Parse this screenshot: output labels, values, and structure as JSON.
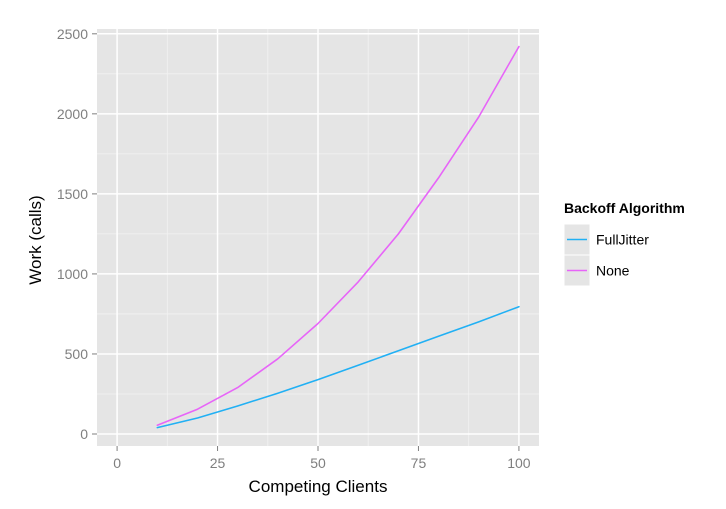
{
  "chart_data": {
    "type": "line",
    "xlabel": "Competing Clients",
    "ylabel": "Work (calls)",
    "xlim": [
      -5,
      105
    ],
    "ylim": [
      -75,
      2530
    ],
    "x_ticks": [
      0,
      25,
      50,
      75,
      100
    ],
    "y_ticks": [
      0,
      500,
      1000,
      1500,
      2000,
      2500
    ],
    "grid": true,
    "legend_position": "right",
    "legend_title": "Backoff Algorithm",
    "series": [
      {
        "name": "FullJitter",
        "color": "#21B0F4",
        "x": [
          10,
          20,
          30,
          40,
          50,
          60,
          70,
          80,
          90,
          100
        ],
        "y": [
          40,
          100,
          175,
          255,
          340,
          430,
          520,
          610,
          700,
          795
        ]
      },
      {
        "name": "None",
        "color": "#E765F8",
        "x": [
          10,
          20,
          30,
          40,
          50,
          60,
          70,
          80,
          90,
          100
        ],
        "y": [
          55,
          155,
          290,
          470,
          690,
          950,
          1250,
          1600,
          1980,
          2420
        ]
      }
    ],
    "colors": {
      "panel_background": "#E5E5E5",
      "grid_major": "#FFFFFF",
      "grid_minor": "#F2F2F2",
      "tick_label": "#7F7F7F",
      "axis_title": "#000000"
    }
  }
}
